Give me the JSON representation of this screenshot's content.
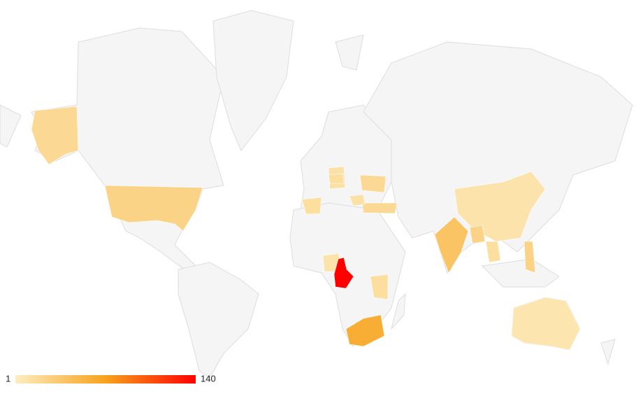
{
  "chart_data": {
    "type": "geo",
    "values": [
      20,
      25,
      15,
      12,
      20,
      20,
      12,
      10,
      140,
      15,
      60,
      40,
      10,
      15,
      25,
      8,
      25,
      15
    ],
    "colorlim": [
      1,
      140
    ],
    "colors": [
      "#fdedc0",
      "#f7a21b",
      "#ff0000"
    ],
    "land_color": "#f5f5f5",
    "border_color": "#dddddd"
  }
}
